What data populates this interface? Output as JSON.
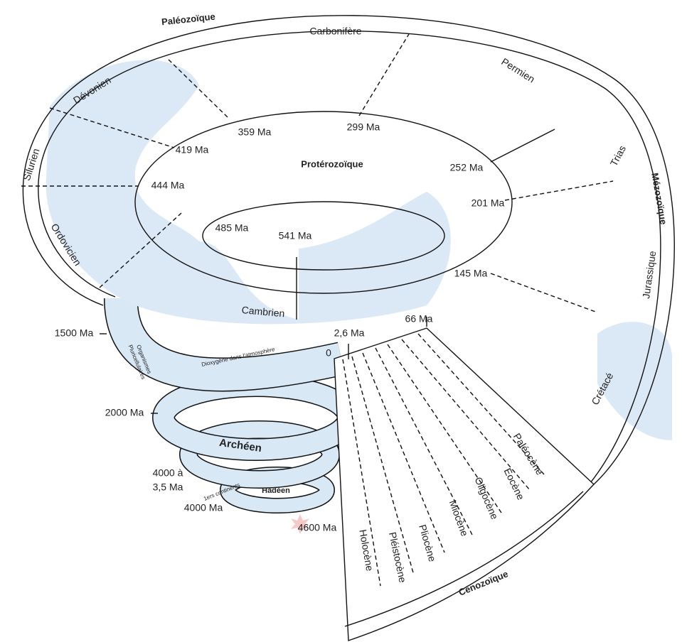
{
  "eras": {
    "paleozoic": "Paléozoïque",
    "mesozoic": "Mézozoïque",
    "cenozoic": "Cénozoïque",
    "proterozoic": "Protérozoïque",
    "archean": "Archéen",
    "hadean": "Hadéen"
  },
  "periods": {
    "devonian": "Dévonien",
    "carboniferous": "Carbonifère",
    "permian": "Permien",
    "triassic": "Trias",
    "jurassic": "Jurassique",
    "cretaceous": "Crétacé",
    "silurian": "Silurien",
    "ordovician": "Ordovicien",
    "cambrian": "Cambrien"
  },
  "epochs": {
    "paleocene": "Paléocène",
    "eocene": "Éocène",
    "oligocene": "Oligocène",
    "miocene": "Miocène",
    "pliocene": "Pliocène",
    "pleistocene": "Pléistocène",
    "holocene": "Holocène"
  },
  "ages": {
    "a359": "359 Ma",
    "a299": "299 Ma",
    "a419": "419 Ma",
    "a252": "252 Ma",
    "a444": "444 Ma",
    "a201": "201 Ma",
    "a485": "485 Ma",
    "a541": "541 Ma",
    "a145": "145 Ma",
    "a66": "66 Ma",
    "a2_6": "2,6 Ma",
    "a0": "0",
    "a1500": "1500 Ma",
    "a2000": "2000 Ma",
    "a4000_35": {
      "line1": "4000 à",
      "line2": "3,5 Ma"
    },
    "a4000": "4000 Ma",
    "a4600": "4600 Ma"
  },
  "annotations": {
    "multicellular": {
      "line1": "Organismes",
      "line2": "Pluricellulaires"
    },
    "dioxygen": "Dioxygène dans l'atmosphère",
    "continents": "1ers continents"
  }
}
